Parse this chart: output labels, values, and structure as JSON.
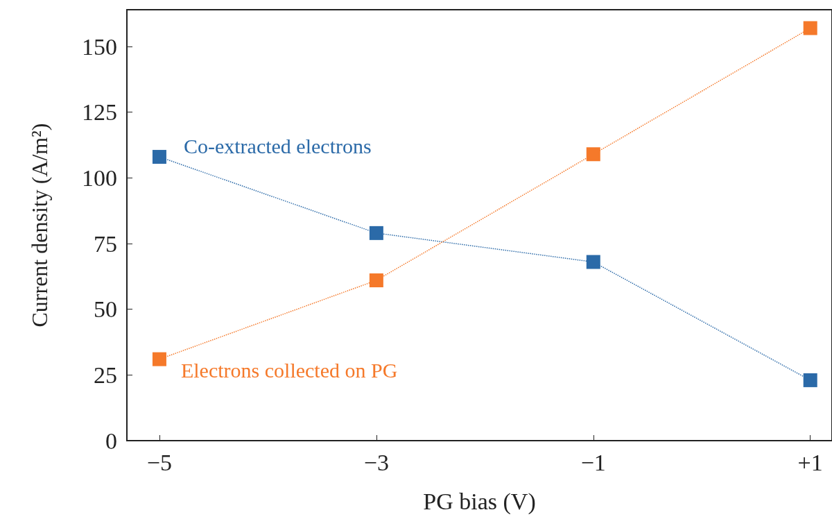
{
  "chart_data": {
    "type": "line",
    "xlabel": "PG bias (V)",
    "ylabel": "Current density (A/m²)",
    "x": [
      -5,
      -3,
      -1,
      1
    ],
    "series": [
      {
        "name": "Co-extracted electrons",
        "color": "#2b6aa8",
        "values": [
          108,
          79,
          68,
          23
        ]
      },
      {
        "name": "Electrons collected on PG",
        "color": "#f5792a",
        "values": [
          31,
          61,
          109,
          157
        ]
      }
    ],
    "xlim": [
      -5.3,
      1.2
    ],
    "xticks": [
      {
        "value": -5,
        "label": "−5"
      },
      {
        "value": -3,
        "label": "−3"
      },
      {
        "value": -1,
        "label": "−1"
      },
      {
        "value": 1,
        "label": "+1"
      }
    ],
    "ylim": [
      0,
      164
    ],
    "yticks": [
      0,
      25,
      50,
      75,
      100,
      125,
      150
    ],
    "grid": false,
    "legend": false,
    "marker": "square",
    "line_style": "dotted"
  }
}
